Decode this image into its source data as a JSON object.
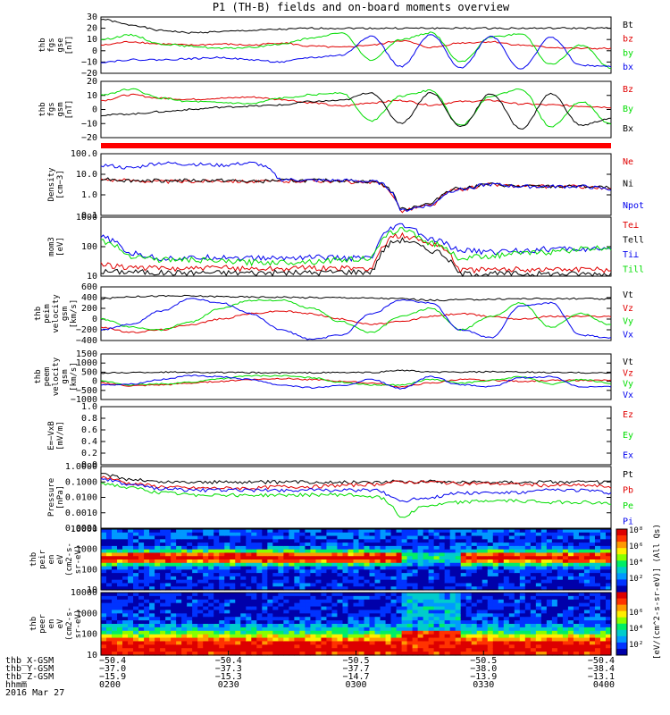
{
  "title": "P1 (TH-B) fields and on-board moments overview",
  "colors": {
    "black": "#000000",
    "red": "#e00000",
    "green": "#00dd00",
    "blue": "#0000ee"
  },
  "chart_data": [
    {
      "id": "fgs-gse",
      "type": "line",
      "ylabel_lines": [
        "thb",
        "fgs",
        "gse",
        "[nT]"
      ],
      "yticks": [
        "30",
        "20",
        "10",
        "0",
        "−10",
        "−20"
      ],
      "ylim": [
        -20,
        30
      ],
      "series": [
        {
          "name": "Bt",
          "color": "black",
          "values": [
            28,
            23,
            18,
            16,
            17,
            18,
            19,
            20,
            20,
            20,
            20,
            20,
            20,
            20,
            20,
            20,
            20,
            20
          ]
        },
        {
          "name": "bz",
          "color": "red",
          "values": [
            5,
            8,
            6,
            5,
            6,
            5,
            7,
            4,
            3,
            5,
            9,
            3,
            7,
            8,
            5,
            3,
            2,
            2
          ]
        },
        {
          "name": "by",
          "color": "green",
          "values": [
            10,
            14,
            6,
            4,
            2,
            3,
            6,
            11,
            16,
            -8,
            10,
            16,
            -10,
            12,
            15,
            -12,
            5,
            -15
          ]
        },
        {
          "name": "bx",
          "color": "blue",
          "values": [
            -10,
            -8,
            -8,
            -7,
            -6,
            -8,
            -10,
            -6,
            -4,
            13,
            -14,
            14,
            -15,
            13,
            -16,
            12,
            -13,
            -14
          ]
        }
      ]
    },
    {
      "id": "fgs-gsm",
      "type": "line",
      "ylabel_lines": [
        "thb",
        "fgs",
        "gsm",
        "[nT]"
      ],
      "yticks": [
        "20",
        "10",
        "0",
        "−10",
        "−20"
      ],
      "ylim": [
        -25,
        25
      ],
      "series": [
        {
          "name": "Bz",
          "color": "red",
          "values": [
            8,
            13,
            10,
            9,
            10,
            11,
            9,
            6,
            3,
            6,
            8,
            4,
            7,
            8,
            5,
            4,
            3,
            2
          ]
        },
        {
          "name": "By",
          "color": "green",
          "values": [
            13,
            18,
            10,
            7,
            6,
            5,
            10,
            13,
            15,
            -10,
            12,
            17,
            -14,
            12,
            18,
            -15,
            7,
            -13
          ]
        },
        {
          "name": "Bx",
          "color": "black",
          "values": [
            -5,
            -4,
            -2,
            0,
            2,
            3,
            4,
            7,
            8,
            15,
            -12,
            15,
            -15,
            14,
            -17,
            14,
            -14,
            -8
          ]
        }
      ]
    },
    {
      "id": "density",
      "type": "line",
      "scale": "log",
      "ylabel_lines": [
        "Density",
        "[cm−3]"
      ],
      "yticks": [
        "100.0",
        "10.0",
        "1.0",
        "0.1"
      ],
      "ylim": [
        0.05,
        300
      ],
      "series": [
        {
          "name": "Ne",
          "color": "red",
          "values": [
            8,
            7,
            6,
            6,
            7,
            6,
            6,
            7,
            6,
            5,
            0.1,
            0.2,
            2,
            4,
            3,
            3,
            3,
            2
          ]
        },
        {
          "name": "Ni",
          "color": "black",
          "values": [
            9,
            7,
            7,
            7,
            7,
            6,
            7,
            7,
            7,
            6,
            0.12,
            0.25,
            2.5,
            4,
            3,
            3,
            3,
            2.5
          ]
        },
        {
          "name": "Npot",
          "color": "blue",
          "values": [
            60,
            40,
            80,
            70,
            60,
            80,
            8,
            7,
            7,
            6,
            0.1,
            0.2,
            2,
            4,
            3,
            3,
            3,
            2
          ]
        }
      ]
    },
    {
      "id": "temperature",
      "type": "line",
      "scale": "log",
      "ylabel_lines": [
        "mom3",
        "[eV]"
      ],
      "yticks": [
        "1000",
        "100",
        "10"
      ],
      "ylim": [
        8,
        1500
      ],
      "series": [
        {
          "name": "Te⊥",
          "color": "red",
          "values": [
            22,
            18,
            16,
            16,
            17,
            16,
            16,
            17,
            16,
            16,
            300,
            150,
            14,
            14,
            15,
            15,
            15,
            14
          ]
        },
        {
          "name": "Tell",
          "color": "black",
          "values": [
            12,
            12,
            11,
            11,
            11,
            11,
            11,
            11,
            12,
            12,
            200,
            80,
            10,
            10,
            10,
            10,
            10,
            10
          ]
        },
        {
          "name": "Ti⊥",
          "color": "blue",
          "values": [
            250,
            60,
            40,
            40,
            45,
            40,
            40,
            45,
            40,
            40,
            700,
            200,
            80,
            70,
            80,
            90,
            90,
            80
          ]
        },
        {
          "name": "Till",
          "color": "green",
          "values": [
            180,
            50,
            35,
            35,
            30,
            28,
            28,
            30,
            35,
            40,
            500,
            150,
            40,
            50,
            60,
            70,
            90,
            100
          ]
        }
      ]
    },
    {
      "id": "peim-velocity",
      "type": "line",
      "ylabel_lines": [
        "thb",
        "peim",
        "velocity",
        "gsm",
        "[km/s]"
      ],
      "yticks": [
        "600",
        "400",
        "200",
        "0",
        "−200",
        "−400"
      ],
      "ylim": [
        -400,
        600
      ],
      "series": [
        {
          "name": "Vt",
          "color": "black",
          "values": [
            380,
            420,
            430,
            430,
            420,
            410,
            410,
            400,
            400,
            390,
            380,
            350,
            360,
            370,
            380,
            380,
            380,
            370
          ]
        },
        {
          "name": "Vz",
          "color": "red",
          "values": [
            -150,
            -250,
            -200,
            -100,
            0,
            100,
            150,
            100,
            0,
            -100,
            -50,
            50,
            100,
            50,
            0,
            50,
            50,
            50
          ]
        },
        {
          "name": "Vy",
          "color": "green",
          "values": [
            0,
            -150,
            -200,
            -50,
            200,
            350,
            350,
            200,
            -50,
            -250,
            50,
            200,
            -200,
            50,
            300,
            -150,
            100,
            -100
          ]
        },
        {
          "name": "Vx",
          "color": "blue",
          "values": [
            -200,
            -100,
            150,
            380,
            300,
            100,
            -200,
            -380,
            -300,
            100,
            350,
            300,
            -200,
            -350,
            250,
            300,
            -300,
            -350
          ]
        }
      ]
    },
    {
      "id": "peem-velocity",
      "type": "line",
      "ylabel_lines": [
        "thb",
        "peem",
        "velocity",
        "gsm",
        "[km/s]"
      ],
      "yticks": [
        "1500",
        "1000",
        "500",
        "0",
        "−500",
        "−1000"
      ],
      "ylim": [
        -1000,
        1500
      ],
      "series": [
        {
          "name": "Vt",
          "color": "black",
          "values": [
            450,
            480,
            500,
            500,
            480,
            470,
            460,
            470,
            480,
            480,
            600,
            500,
            500,
            520,
            500,
            480,
            470,
            460
          ]
        },
        {
          "name": "Vz",
          "color": "red",
          "values": [
            -100,
            -250,
            -200,
            -100,
            0,
            100,
            150,
            100,
            0,
            -100,
            -300,
            -100,
            100,
            50,
            0,
            50,
            50,
            50
          ]
        },
        {
          "name": "Vy",
          "color": "green",
          "values": [
            0,
            -200,
            -150,
            -50,
            150,
            300,
            300,
            200,
            -50,
            -200,
            -200,
            100,
            -100,
            50,
            250,
            -150,
            100,
            -100
          ]
        },
        {
          "name": "Vx",
          "color": "blue",
          "values": [
            -200,
            -150,
            100,
            300,
            250,
            100,
            -200,
            -350,
            -250,
            100,
            -400,
            250,
            -200,
            -300,
            200,
            250,
            -300,
            -300
          ]
        }
      ]
    },
    {
      "id": "efield",
      "type": "line",
      "ylabel_lines": [
        "E=−VxB",
        "[mV/m]"
      ],
      "yticks": [
        "1.0",
        "0.8",
        "0.6",
        "0.4",
        "0.2",
        "0.0"
      ],
      "ylim": [
        0,
        1
      ],
      "series": [
        {
          "name": "Ez",
          "color": "red",
          "values": []
        },
        {
          "name": "Ey",
          "color": "green",
          "values": []
        },
        {
          "name": "Ex",
          "color": "blue",
          "values": []
        }
      ]
    },
    {
      "id": "pressure",
      "type": "line",
      "scale": "log",
      "ylabel_lines": [
        "Pressure",
        "[nPa]"
      ],
      "yticks": [
        "1.0000",
        "0.1000",
        "0.0100",
        "0.0010",
        "0.0001"
      ],
      "ylim": [
        0.0001,
        1
      ],
      "series": [
        {
          "name": "Pt",
          "color": "black",
          "values": [
            0.3,
            0.15,
            0.1,
            0.1,
            0.1,
            0.1,
            0.1,
            0.1,
            0.1,
            0.1,
            0.11,
            0.11,
            0.1,
            0.1,
            0.1,
            0.1,
            0.1,
            0.1
          ]
        },
        {
          "name": "Pb",
          "color": "red",
          "values": [
            0.2,
            0.08,
            0.05,
            0.04,
            0.04,
            0.04,
            0.05,
            0.05,
            0.06,
            0.07,
            0.1,
            0.1,
            0.08,
            0.08,
            0.07,
            0.06,
            0.06,
            0.05
          ]
        },
        {
          "name": "Pe",
          "color": "green",
          "values": [
            0.08,
            0.04,
            0.02,
            0.015,
            0.015,
            0.014,
            0.014,
            0.015,
            0.015,
            0.012,
            0.0005,
            0.003,
            0.005,
            0.006,
            0.006,
            0.005,
            0.005,
            0.004
          ]
        },
        {
          "name": "Pi",
          "color": "blue",
          "values": [
            0.15,
            0.06,
            0.04,
            0.03,
            0.03,
            0.03,
            0.03,
            0.03,
            0.03,
            0.03,
            0.006,
            0.01,
            0.02,
            0.02,
            0.02,
            0.03,
            0.03,
            0.02
          ]
        }
      ]
    },
    {
      "id": "peir-spectrogram",
      "type": "heatmap",
      "ylabel_lines": [
        "thb",
        "peir",
        "en",
        "eV",
        "(cm2-s-",
        "sr-eV)"
      ],
      "yticks": [
        "10000",
        "1000",
        "100",
        "10"
      ],
      "band": {
        "center_log": 2.75,
        "width": 0.4
      }
    },
    {
      "id": "peer-spectrogram",
      "type": "heatmap",
      "ylabel_lines": [
        "thb",
        "peer",
        "en",
        "eV",
        "(cm2-s-",
        "sr-eV)"
      ],
      "yticks": [
        "10000",
        "1000",
        "100",
        "10"
      ],
      "band": {
        "center_log": 1.3,
        "width": 0.9
      }
    }
  ],
  "colorbar": {
    "ticks": [
      "10⁸",
      "10⁶",
      "10⁴",
      "10²",
      "10⁶",
      "10⁴",
      "10²"
    ],
    "label": "[eV/(cm^2-s-sr-eV)] (All Qs)"
  },
  "xaxis": {
    "row_labels": [
      "thb_X-GSM",
      "thb_Y-GSM",
      "thb_Z-GSM",
      "hhmm",
      "2016 Mar 27"
    ],
    "ticks": [
      {
        "x": "−50.4",
        "y": "−37.0",
        "z": "−15.9",
        "t": "0200"
      },
      {
        "x": "−50.4",
        "y": "−37.3",
        "z": "−15.3",
        "t": "0230"
      },
      {
        "x": "−50.5",
        "y": "−37.7",
        "z": "−14.7",
        "t": "0300"
      },
      {
        "x": "−50.5",
        "y": "−38.0",
        "z": "−13.9",
        "t": "0330"
      },
      {
        "x": "−50.4",
        "y": "−38.4",
        "z": "−13.1",
        "t": "0400"
      }
    ]
  }
}
